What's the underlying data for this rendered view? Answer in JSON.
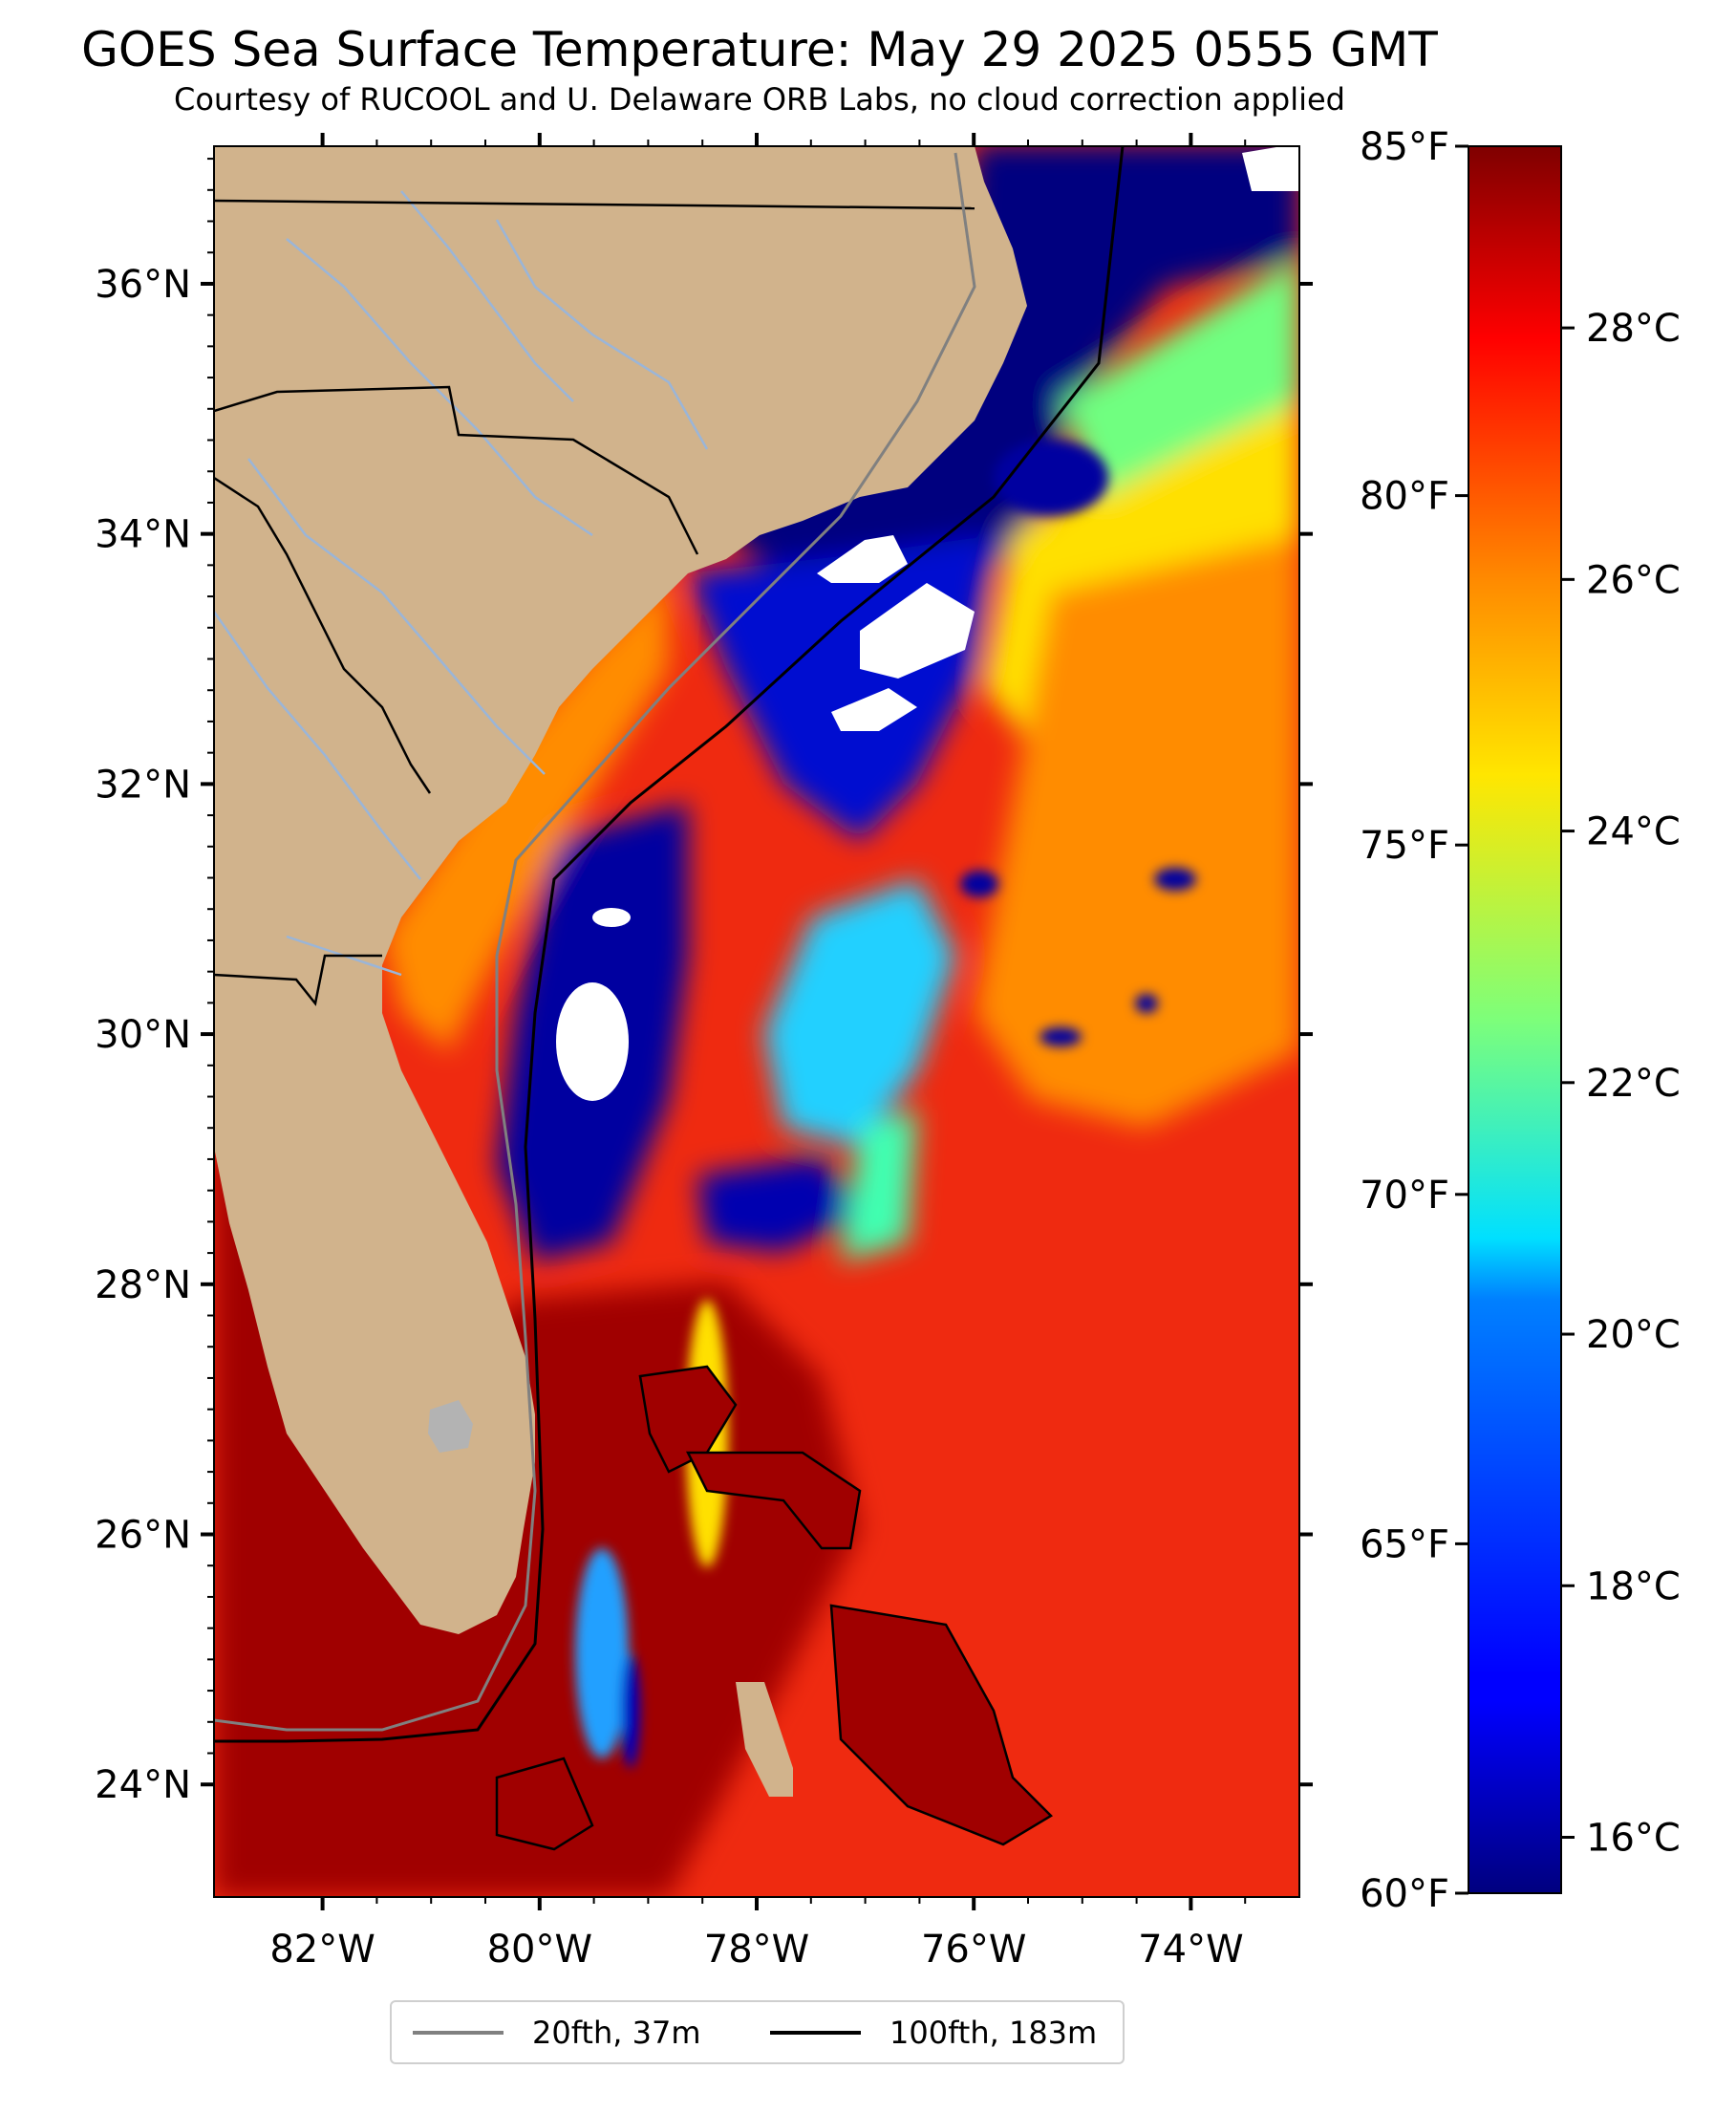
{
  "title": "GOES Sea Surface Temperature: May 29 2025 0555 GMT",
  "subtitle": "Courtesy of RUCOOL and U. Delaware ORB Labs, no cloud correction applied",
  "map": {
    "lat_ticks": [
      "36°N",
      "34°N",
      "32°N",
      "30°N",
      "28°N",
      "26°N",
      "24°N"
    ],
    "lon_ticks": [
      "82°W",
      "80°W",
      "78°W",
      "76°W",
      "74°W"
    ],
    "extent": {
      "lon_min": -83.0,
      "lon_max": -73.0,
      "lat_min": 23.1,
      "lat_max": 37.1
    },
    "land_color": "#d1b38c",
    "no_data_color": "#ffffff",
    "state_border_color": "#000000",
    "river_color": "#9ab5d8"
  },
  "colorbar": {
    "celsius_ticks": [
      "28°C",
      "26°C",
      "24°C",
      "22°C",
      "20°C",
      "18°C",
      "16°C"
    ],
    "fahrenheit_ticks": [
      "85°F",
      "80°F",
      "75°F",
      "70°F",
      "65°F",
      "60°F"
    ],
    "celsius_values": [
      28,
      26,
      24,
      22,
      20,
      18,
      16
    ],
    "fahrenheit_values": [
      85,
      80,
      75,
      70,
      65,
      60
    ],
    "range_f": [
      60,
      85
    ],
    "colormap": "jet"
  },
  "legend": {
    "items": [
      {
        "label": "20fth, 37m",
        "color": "#808080"
      },
      {
        "label": "100fth, 183m",
        "color": "#000000"
      }
    ]
  }
}
